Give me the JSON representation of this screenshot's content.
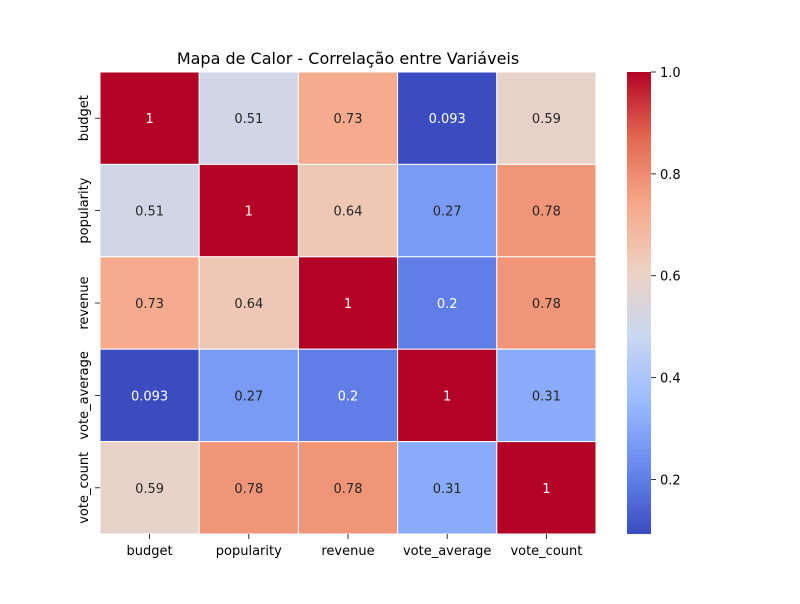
{
  "chart_data": {
    "type": "heatmap",
    "title": "Mapa de Calor - Correlação entre Variáveis",
    "x_categories": [
      "budget",
      "popularity",
      "revenue",
      "vote_average",
      "vote_count"
    ],
    "y_categories": [
      "budget",
      "popularity",
      "revenue",
      "vote_average",
      "vote_count"
    ],
    "values": [
      [
        1,
        0.51,
        0.73,
        0.093,
        0.59
      ],
      [
        0.51,
        1,
        0.64,
        0.27,
        0.78
      ],
      [
        0.73,
        0.64,
        1,
        0.2,
        0.78
      ],
      [
        0.093,
        0.27,
        0.2,
        1,
        0.31
      ],
      [
        0.59,
        0.78,
        0.78,
        0.31,
        1
      ]
    ],
    "annotations": [
      [
        "1",
        "0.51",
        "0.73",
        "0.093",
        "0.59"
      ],
      [
        "0.51",
        "1",
        "0.64",
        "0.27",
        "0.78"
      ],
      [
        "0.73",
        "0.64",
        "1",
        "0.2",
        "0.78"
      ],
      [
        "0.093",
        "0.27",
        "0.2",
        "1",
        "0.31"
      ],
      [
        "0.59",
        "0.78",
        "0.78",
        "0.31",
        "1"
      ]
    ],
    "colormap": "coolwarm",
    "color_range": [
      0.093,
      1.0
    ],
    "colorbar": {
      "ticks": [
        0.2,
        0.4,
        0.6,
        0.8,
        1.0
      ],
      "tick_labels": [
        "0.2",
        "0.4",
        "0.6",
        "0.8",
        "1.0"
      ]
    },
    "colors": {
      "colormap_stops": [
        "#3b4cc0",
        "#6889ee",
        "#9abbff",
        "#c9d7f0",
        "#edd1c2",
        "#f7a889",
        "#e26952",
        "#b40426"
      ],
      "gridline": "#ffffff",
      "text_dark": "#262626",
      "text_light": "#ffffff"
    }
  }
}
